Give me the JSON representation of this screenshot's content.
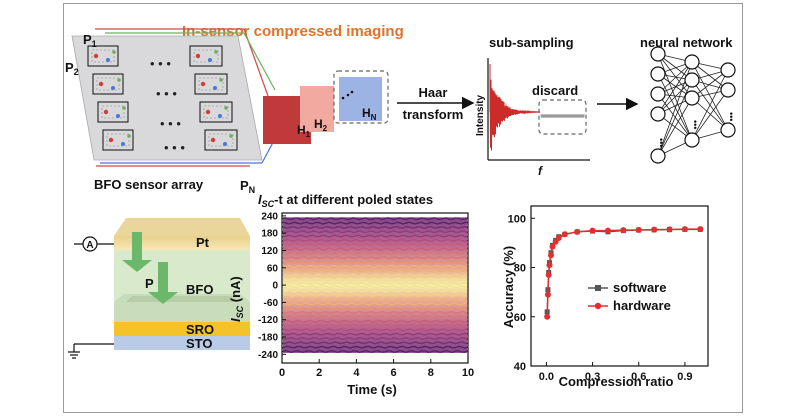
{
  "title": "In-sensor compressed imaging",
  "sensor": {
    "labels": [
      "P",
      "P",
      "P"
    ],
    "subscripts": [
      "1",
      "2",
      "N"
    ],
    "array_label": "BFO sensor array"
  },
  "haar": {
    "h_labels": [
      "H",
      "H",
      "H"
    ],
    "h_subs": [
      "1",
      "2",
      "N"
    ],
    "arrow_label_1": "Haar",
    "arrow_label_2": "transform"
  },
  "subsampling": {
    "title": "sub-sampling",
    "ylabel": "Intensity",
    "xlabel": "f",
    "discard_label": "discard"
  },
  "nn": {
    "title": "neural network",
    "ellipsis": "•••"
  },
  "device": {
    "ammeter": "A",
    "layers": [
      "Pt",
      "BFO",
      "SRO",
      "STO"
    ],
    "polarization": "P"
  },
  "isc_chart": {
    "title_prefix": "I",
    "title_sub": "SC",
    "title_suffix": "-t at different poled states",
    "ylabel_prefix": "I",
    "ylabel_sub": "SC",
    "ylabel_suffix": " (nA)",
    "xlabel": "Time (s)",
    "xticks": [
      0,
      2,
      4,
      6,
      8,
      10
    ],
    "yticks": [
      240,
      180,
      120,
      60,
      0,
      -60,
      -120,
      -180,
      -240
    ],
    "xlim": [
      0,
      10
    ],
    "ylim": [
      -270,
      250
    ],
    "band_levels": [
      230,
      215,
      200,
      185,
      170,
      155,
      140,
      125,
      110,
      95,
      80,
      65,
      50,
      35,
      20,
      5,
      -5,
      -20,
      -35,
      -50,
      -65,
      -80,
      -95,
      -110,
      -125,
      -140,
      -155,
      -170,
      -185,
      -200,
      -215,
      -230
    ]
  },
  "chart_data": {
    "type": "line",
    "xlabel": "Compression ratio",
    "ylabel": "Accuracy (%)",
    "xlim": [
      -0.1,
      1.05
    ],
    "ylim": [
      40,
      105
    ],
    "xticks": [
      0.0,
      0.3,
      0.6,
      0.9
    ],
    "yticks": [
      40,
      60,
      80,
      100
    ],
    "legend_position": "center-right",
    "series": [
      {
        "name": "software",
        "color": "#555555",
        "x": [
          0.005,
          0.01,
          0.015,
          0.02,
          0.03,
          0.04,
          0.06,
          0.08,
          0.12,
          0.2,
          0.3,
          0.4,
          0.5,
          0.6,
          0.7,
          0.8,
          0.9,
          1.0
        ],
        "y": [
          62,
          71,
          78,
          82,
          86,
          89,
          91,
          92.5,
          93.5,
          94.5,
          94.8,
          94.5,
          95,
          95.2,
          95.3,
          95.4,
          95.5,
          95.5
        ]
      },
      {
        "name": "hardware",
        "color": "#e03030",
        "x": [
          0.005,
          0.01,
          0.015,
          0.02,
          0.03,
          0.04,
          0.06,
          0.08,
          0.12,
          0.2,
          0.3,
          0.4,
          0.5,
          0.6,
          0.7,
          0.8,
          0.9,
          1.0
        ],
        "y": [
          60,
          69,
          77,
          81,
          85,
          88.5,
          90.5,
          92,
          93.5,
          94.5,
          95,
          95,
          95.2,
          95.3,
          95.4,
          95.5,
          95.6,
          95.6
        ]
      }
    ]
  }
}
